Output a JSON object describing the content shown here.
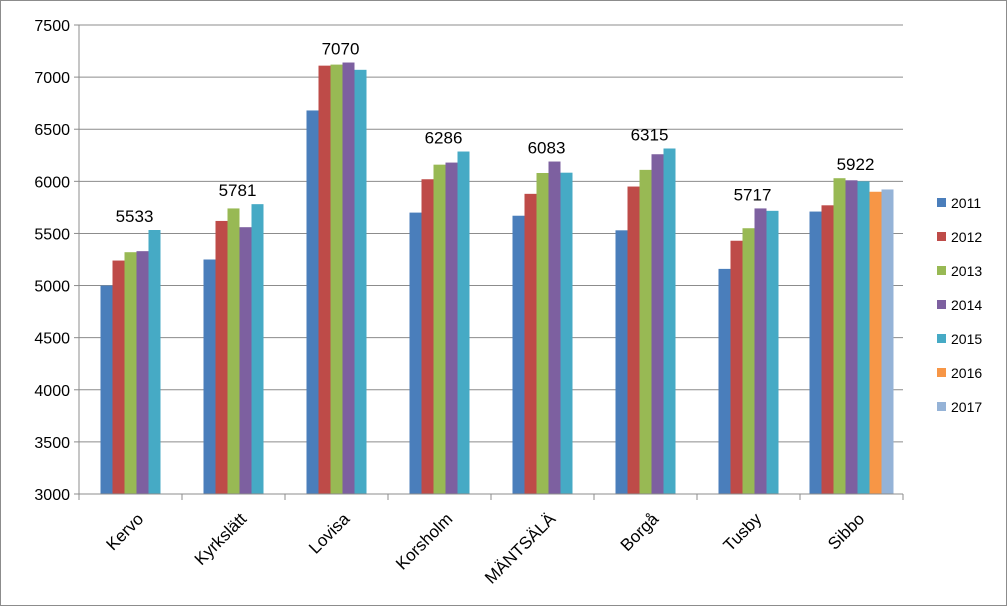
{
  "chart_data": {
    "type": "bar",
    "title": "",
    "xlabel": "",
    "ylabel": "",
    "ylim": [
      3000,
      7500
    ],
    "yticks": [
      3000,
      3500,
      4000,
      4500,
      5000,
      5500,
      6000,
      6500,
      7000,
      7500
    ],
    "grid": "horizontal",
    "legend_position": "right",
    "categories": [
      "Kervo",
      "Kyrkslätt",
      "Lovisa",
      "Korsholm",
      "MÄNTSÄLÄ",
      "Borgå",
      "Tusby",
      "Sibbo"
    ],
    "series": [
      {
        "name": "2011",
        "color": "#4a7ebb",
        "values": [
          5000,
          5250,
          6680,
          5700,
          5670,
          5530,
          5160,
          5710
        ]
      },
      {
        "name": "2012",
        "color": "#be4b48",
        "values": [
          5240,
          5620,
          7110,
          6020,
          5880,
          5950,
          5430,
          5770
        ]
      },
      {
        "name": "2013",
        "color": "#98b954",
        "values": [
          5320,
          5740,
          7120,
          6160,
          6080,
          6110,
          5550,
          6030
        ]
      },
      {
        "name": "2014",
        "color": "#7d60a0",
        "values": [
          5330,
          5560,
          7140,
          6180,
          6190,
          6260,
          5740,
          6010
        ]
      },
      {
        "name": "2015",
        "color": "#46aac5",
        "values": [
          5533,
          5781,
          7070,
          6286,
          6083,
          6315,
          5717,
          6000
        ]
      },
      {
        "name": "2016",
        "color": "#f79646",
        "values": [
          null,
          null,
          null,
          null,
          null,
          null,
          null,
          5900
        ]
      },
      {
        "name": "2017",
        "color": "#95b3d7",
        "values": [
          null,
          null,
          null,
          null,
          null,
          null,
          null,
          5922
        ]
      }
    ],
    "data_labels": [
      "5533",
      "5781",
      "7070",
      "6286",
      "6083",
      "6315",
      "5717",
      "5922"
    ]
  }
}
